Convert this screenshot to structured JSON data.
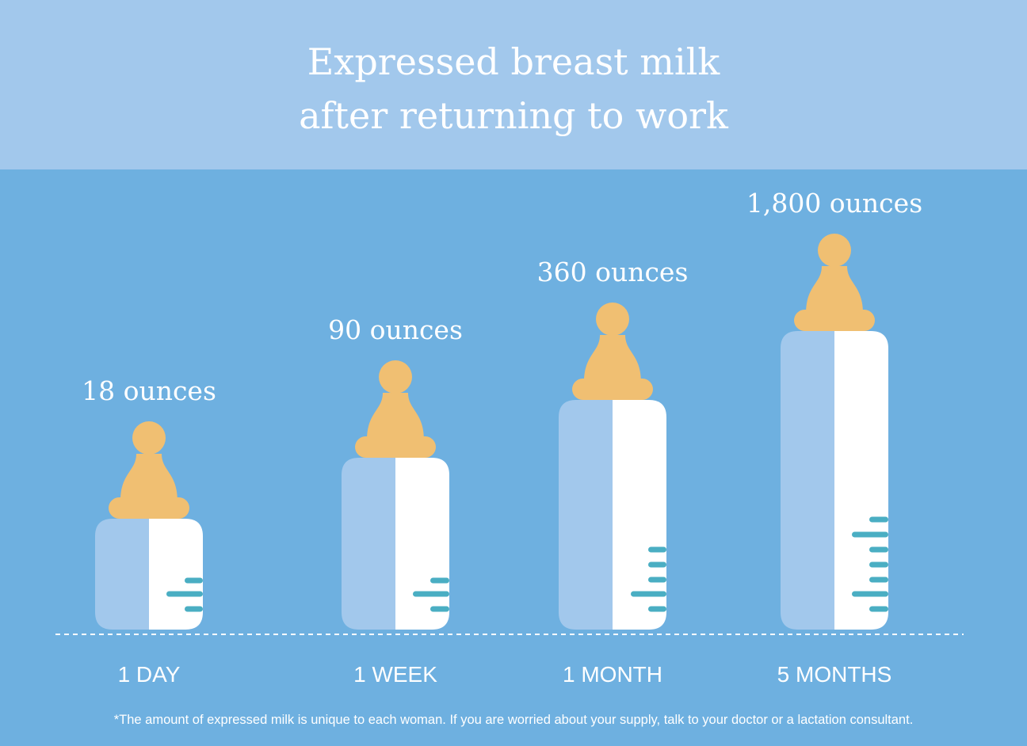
{
  "title": {
    "line1": "Expressed breast milk",
    "line2": "after returning to work"
  },
  "chart_data": {
    "type": "bar",
    "categories": [
      "1 DAY",
      "1 WEEK",
      "1 MONTH",
      "5 MONTHS"
    ],
    "values": [
      18,
      90,
      360,
      1800
    ],
    "value_labels": [
      "18 ounces",
      "90 ounces",
      "360 ounces",
      "1,800 ounces"
    ],
    "unit": "ounces",
    "note": "bottle heights are illustrative, not to scale"
  },
  "footnote": "*The amount of expressed milk is unique to each woman. If you are worried about your supply, talk to your doctor or a lactation consultant.",
  "colors": {
    "background": "#6eb0e0",
    "header": "#a2c8ec",
    "bottle_light": "#a2c8ec",
    "bottle_white": "#ffffff",
    "nipple": "#f0bf72",
    "tick": "#4aaec3"
  }
}
